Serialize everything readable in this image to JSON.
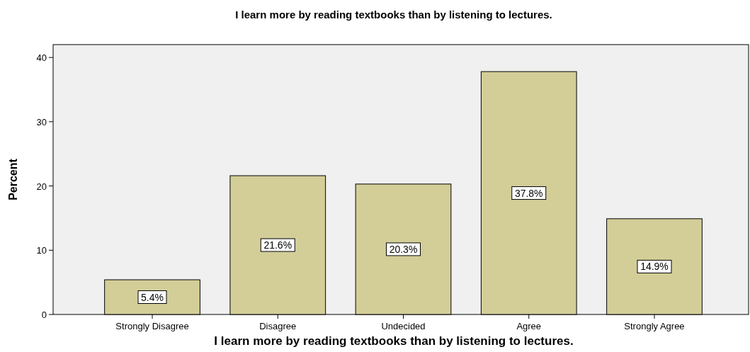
{
  "chart_data": {
    "type": "bar",
    "title": "I learn more by reading textbooks than by listening to lectures.",
    "xlabel": "I learn more by reading textbooks than by listening to lectures.",
    "ylabel": "Percent",
    "categories": [
      "Strongly Disagree",
      "Disagree",
      "Undecided",
      "Agree",
      "Strongly Agree"
    ],
    "values": [
      5.4,
      21.6,
      20.3,
      37.8,
      14.9
    ],
    "value_labels": [
      "5.4%",
      "21.6%",
      "20.3%",
      "37.8%",
      "14.9%"
    ],
    "color": "#d3ce98",
    "ylim": [
      0,
      42
    ],
    "yticks": [
      0,
      10,
      20,
      30,
      40
    ],
    "grid": false
  }
}
